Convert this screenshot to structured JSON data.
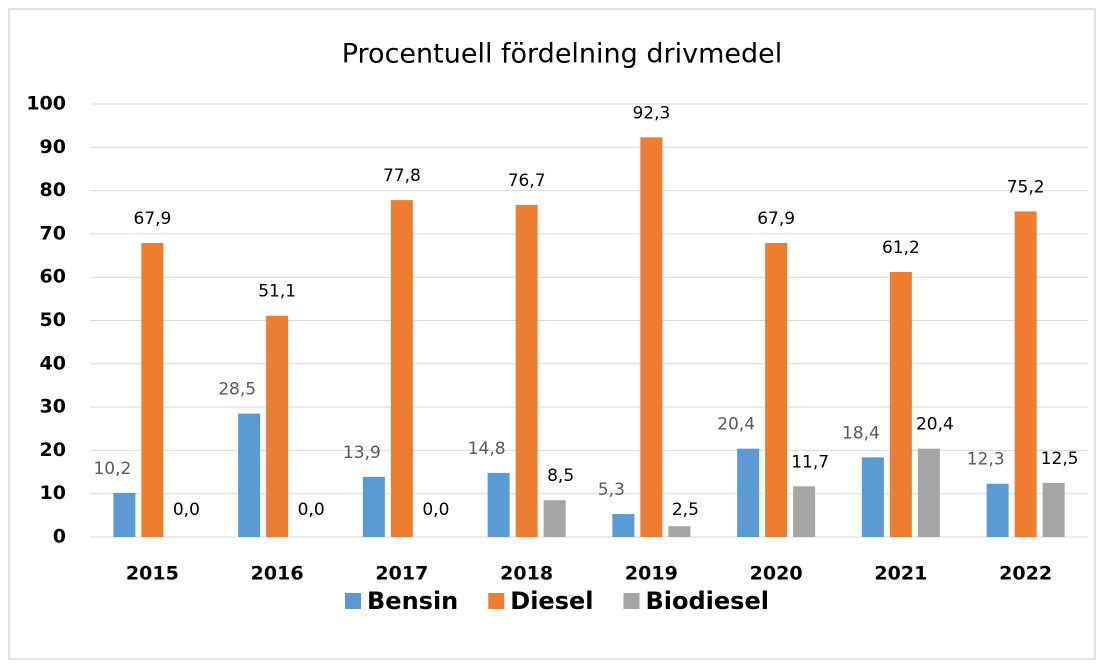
{
  "chart_data": {
    "type": "bar",
    "title": "Procentuell fördelning drivmedel",
    "categories": [
      "2015",
      "2016",
      "2017",
      "2018",
      "2019",
      "2020",
      "2021",
      "2022"
    ],
    "series": [
      {
        "name": "Bensin",
        "color": "#5b9bd5",
        "values": [
          10.2,
          28.5,
          13.9,
          14.8,
          5.3,
          20.4,
          18.4,
          12.3
        ],
        "value_labels": [
          "10,2",
          "28,5",
          "13,9",
          "14,8",
          "5,3",
          "20,4",
          "18,4",
          "12,3"
        ]
      },
      {
        "name": "Diesel",
        "color": "#ed7d31",
        "values": [
          67.9,
          51.1,
          77.8,
          76.7,
          92.3,
          67.9,
          61.2,
          75.2
        ],
        "value_labels": [
          "67,9",
          "51,1",
          "77,8",
          "76,7",
          "92,3",
          "67,9",
          "61,2",
          "75,2"
        ]
      },
      {
        "name": "Biodiesel",
        "color": "#a5a5a5",
        "values": [
          0,
          0,
          0,
          8.5,
          2.5,
          11.7,
          20.4,
          12.5
        ],
        "value_labels": [
          "0,0",
          "0,0",
          "0,0",
          "8,5",
          "2,5",
          "11,7",
          "20,4",
          "12,5"
        ]
      }
    ],
    "ylim": [
      0,
      100
    ],
    "yticks": [
      0,
      10,
      20,
      30,
      40,
      50,
      60,
      70,
      80,
      90,
      100
    ],
    "grid": true,
    "legend": "bottom"
  }
}
